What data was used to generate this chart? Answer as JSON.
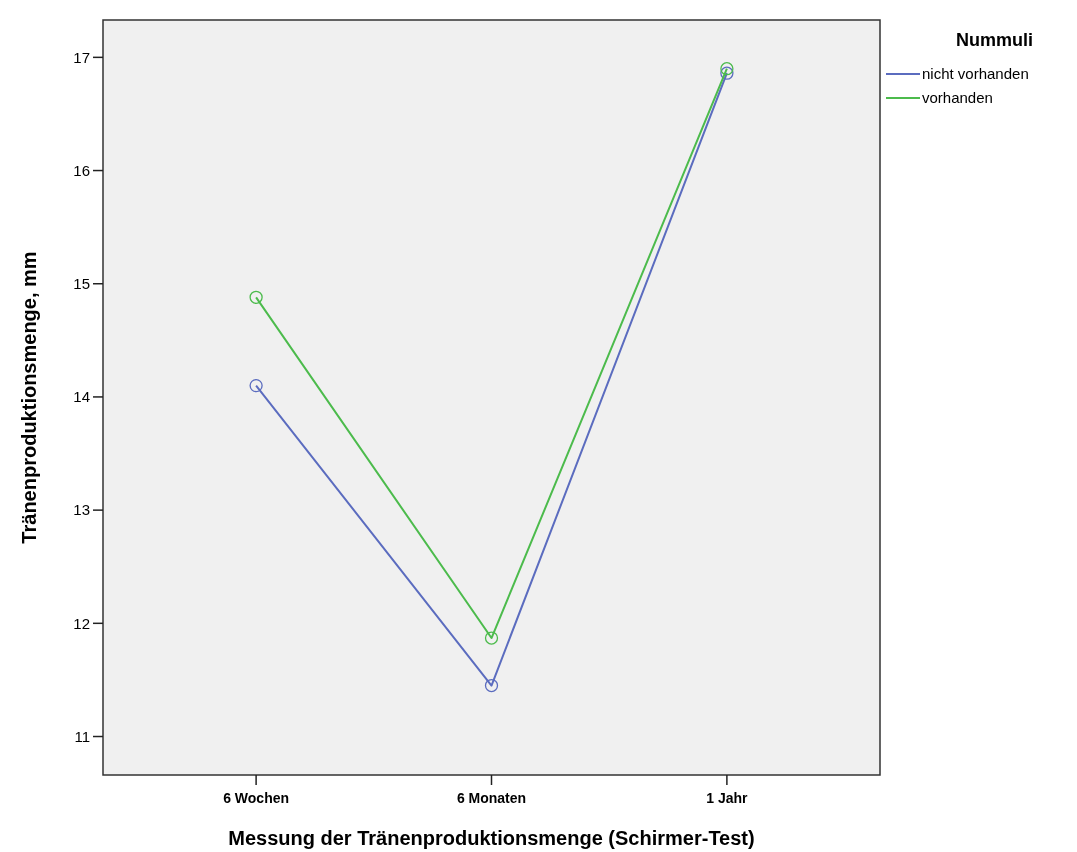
{
  "chart_data": {
    "type": "line",
    "xlabel": "Messung der Tränenproduktionsmenge (Schirmer-Test)",
    "ylabel": "Tränenproduktionsmenge, mm",
    "legend_title": "Nummuli",
    "categories": [
      "6 Wochen",
      "6 Monaten",
      "1 Jahr"
    ],
    "series": [
      {
        "name": "nicht vorhanden",
        "color": "#5b6cbf",
        "values": [
          14.1,
          11.45,
          16.86
        ]
      },
      {
        "name": "vorhanden",
        "color": "#4cbb4c",
        "values": [
          14.88,
          11.87,
          16.9
        ]
      }
    ],
    "ylim": [
      10.66,
      17.33
    ],
    "yticks": [
      11,
      12,
      13,
      14,
      15,
      16,
      17
    ],
    "marker": "circle",
    "legend": "top right",
    "grid": false
  }
}
